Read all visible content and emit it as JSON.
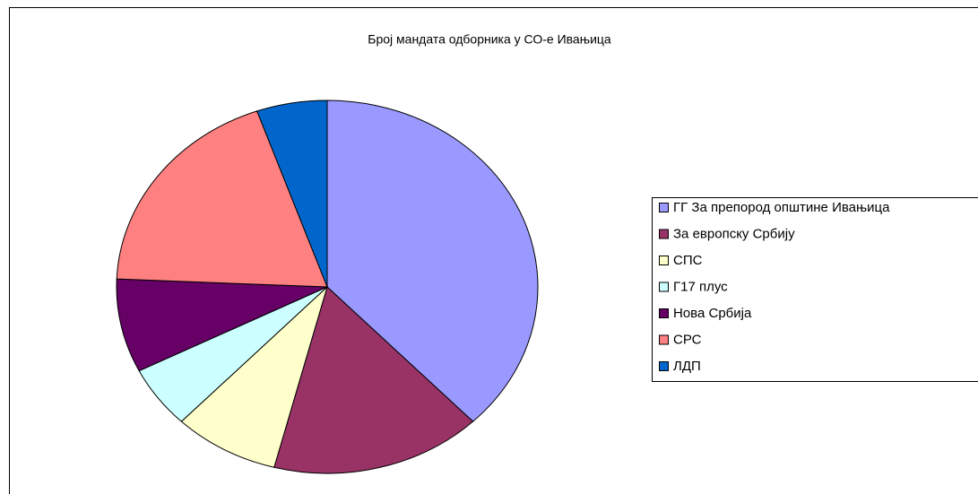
{
  "chart_data": {
    "type": "pie",
    "title": "Број мандата  одборника у СО-е Ивањица",
    "categories": [
      "ГГ За препород општине Ивањица",
      "За европску Србију",
      "СПС",
      "Г17 плус",
      "Нова Србија",
      "СРС",
      "ЛДП"
    ],
    "values": [
      14,
      6,
      3,
      2,
      3,
      7,
      2
    ],
    "colors": [
      "#9999ff",
      "#993366",
      "#ffffcc",
      "#ccffff",
      "#660066",
      "#ff8080",
      "#0066cc"
    ],
    "legend": "right"
  }
}
